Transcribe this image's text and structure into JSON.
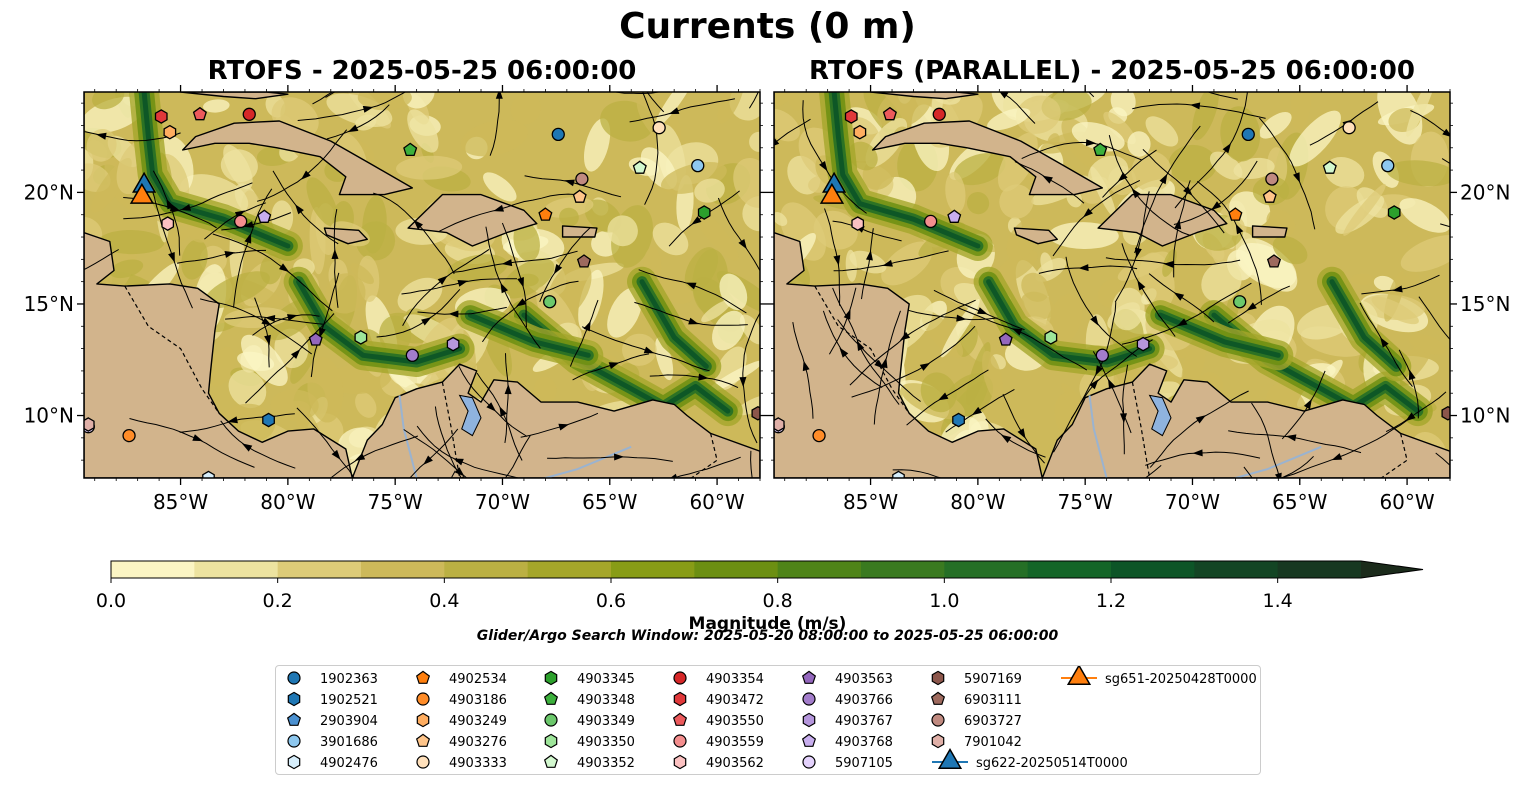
{
  "figure": {
    "title": "Currents (0 m)",
    "colorbar_label": "Magnitude (m/s)",
    "search_window": "Glider/Argo Search Window: 2025-05-20 08:00:00 to 2025-05-25 06:00:00"
  },
  "colors": {
    "land": "#d2b48c",
    "lake": "#8fb3de",
    "river": "#9ab3d0",
    "scale": [
      "#fbf5c4",
      "#ede3a0",
      "#ddcb78",
      "#cdb95a",
      "#bbb043",
      "#a5a62a",
      "#889c16",
      "#6c8f12",
      "#4f8418",
      "#3a7a20",
      "#256f26",
      "#146528",
      "#0d5527",
      "#134524",
      "#173821",
      "#1b2b1b"
    ]
  },
  "chart_data": [
    {
      "type": "map",
      "title": "RTOFS - 2025-05-25 06:00:00",
      "lon_range": [
        -89.5,
        -58
      ],
      "lat_range": [
        7.2,
        24.5
      ],
      "x_ticks": [
        "85°W",
        "80°W",
        "75°W",
        "70°W",
        "65°W",
        "60°W"
      ],
      "y_ticks": [
        "20°N",
        "15°N",
        "10°N"
      ],
      "y_axis_side": "left"
    },
    {
      "type": "map",
      "title": "RTOFS (PARALLEL) - 2025-05-25 06:00:00",
      "lon_range": [
        -89.5,
        -58
      ],
      "lat_range": [
        7.2,
        24.5
      ],
      "x_ticks": [
        "85°W",
        "80°W",
        "75°W",
        "70°W",
        "65°W",
        "60°W"
      ],
      "y_ticks": [
        "20°N",
        "15°N",
        "10°N"
      ],
      "y_axis_side": "right"
    }
  ],
  "colorbar": {
    "min": 0.0,
    "max": 1.5,
    "step": 0.1,
    "extend": "max",
    "ticks": [
      "0.0",
      "0.2",
      "0.4",
      "0.6",
      "0.8",
      "1.0",
      "1.2",
      "1.4"
    ]
  },
  "legend": {
    "items": [
      {
        "label": "1902363",
        "marker": "circle",
        "color": "#1f77b4"
      },
      {
        "label": "1902521",
        "marker": "hexagon",
        "color": "#1f77b4"
      },
      {
        "label": "2903904",
        "marker": "pentagon",
        "color": "#4a90d0"
      },
      {
        "label": "3901686",
        "marker": "circle",
        "color": "#8ec8ef"
      },
      {
        "label": "4902476",
        "marker": "hexagon",
        "color": "#d7eefb"
      },
      {
        "label": "4902534",
        "marker": "pentagon",
        "color": "#ff7f0e"
      },
      {
        "label": "4903186",
        "marker": "circle",
        "color": "#ff8c28"
      },
      {
        "label": "4903249",
        "marker": "hexagon",
        "color": "#ffad60"
      },
      {
        "label": "4903276",
        "marker": "pentagon",
        "color": "#ffc58a"
      },
      {
        "label": "4903333",
        "marker": "circle",
        "color": "#ffe0bb"
      },
      {
        "label": "4903345",
        "marker": "hexagon",
        "color": "#2ca02c"
      },
      {
        "label": "4903348",
        "marker": "pentagon",
        "color": "#3cb03c"
      },
      {
        "label": "4903349",
        "marker": "circle",
        "color": "#6cc86c"
      },
      {
        "label": "4903350",
        "marker": "hexagon",
        "color": "#9ee59a"
      },
      {
        "label": "4903352",
        "marker": "pentagon",
        "color": "#d3f8cf"
      },
      {
        "label": "4903354",
        "marker": "circle",
        "color": "#d62728"
      },
      {
        "label": "4903472",
        "marker": "hexagon",
        "color": "#e0383a"
      },
      {
        "label": "4903550",
        "marker": "pentagon",
        "color": "#ec5a5c"
      },
      {
        "label": "4903559",
        "marker": "circle",
        "color": "#f48e8e"
      },
      {
        "label": "4903562",
        "marker": "hexagon",
        "color": "#fbc1c1"
      },
      {
        "label": "4903563",
        "marker": "pentagon",
        "color": "#9467bd"
      },
      {
        "label": "4903766",
        "marker": "circle",
        "color": "#a37dcb"
      },
      {
        "label": "4903767",
        "marker": "hexagon",
        "color": "#b596dc"
      },
      {
        "label": "4903768",
        "marker": "pentagon",
        "color": "#c8aeee"
      },
      {
        "label": "5907105",
        "marker": "circle",
        "color": "#e4d2fc"
      },
      {
        "label": "5907169",
        "marker": "hexagon",
        "color": "#8c564b"
      },
      {
        "label": "6903111",
        "marker": "pentagon",
        "color": "#9e6a5e"
      },
      {
        "label": "6903727",
        "marker": "circle",
        "color": "#c08a80"
      },
      {
        "label": "7901042",
        "marker": "hexagon",
        "color": "#e0b0a8"
      },
      {
        "label": "sg622-20250514T0000",
        "marker": "triangle",
        "color": "#1f77b4"
      },
      {
        "label": "sg651-20250428T0000",
        "marker": "triangle",
        "color": "#ff7f0e"
      }
    ]
  },
  "floats": [
    {
      "label": "1902363",
      "lon": -67.4,
      "lat": 22.6,
      "marker": "circle",
      "color": "#1f77b4"
    },
    {
      "label": "1902521",
      "lon": -80.9,
      "lat": 9.8,
      "marker": "hexagon",
      "color": "#1f77b4"
    },
    {
      "label": "3901686",
      "lon": -60.9,
      "lat": 21.2,
      "marker": "circle",
      "color": "#8ec8ef"
    },
    {
      "label": "4902476",
      "lon": -83.7,
      "lat": 7.2,
      "marker": "hexagon",
      "color": "#d7eefb"
    },
    {
      "label": "4902534",
      "lon": -68.0,
      "lat": 19.0,
      "marker": "pentagon",
      "color": "#ff7f0e"
    },
    {
      "label": "4903186",
      "lon": -87.4,
      "lat": 9.1,
      "marker": "circle",
      "color": "#ff8c28"
    },
    {
      "label": "4903249",
      "lon": -85.5,
      "lat": 22.7,
      "marker": "hexagon",
      "color": "#ffad60"
    },
    {
      "label": "4903276",
      "lon": -66.4,
      "lat": 19.8,
      "marker": "pentagon",
      "color": "#ffc58a"
    },
    {
      "label": "4903333",
      "lon": -62.7,
      "lat": 22.9,
      "marker": "circle",
      "color": "#ffe0bb"
    },
    {
      "label": "4903345",
      "lon": -60.6,
      "lat": 19.1,
      "marker": "hexagon",
      "color": "#2ca02c"
    },
    {
      "label": "4903348",
      "lon": -74.3,
      "lat": 21.9,
      "marker": "pentagon",
      "color": "#3cb03c"
    },
    {
      "label": "4903349",
      "lon": -67.8,
      "lat": 15.1,
      "marker": "circle",
      "color": "#6cc86c"
    },
    {
      "label": "4903350",
      "lon": -76.6,
      "lat": 13.5,
      "marker": "hexagon",
      "color": "#9ee59a"
    },
    {
      "label": "4903352",
      "lon": -63.6,
      "lat": 21.1,
      "marker": "pentagon",
      "color": "#d3f8cf"
    },
    {
      "label": "4903354",
      "lon": -81.8,
      "lat": 23.5,
      "marker": "circle",
      "color": "#d62728"
    },
    {
      "label": "4903472",
      "lon": -85.9,
      "lat": 23.4,
      "marker": "hexagon",
      "color": "#e0383a"
    },
    {
      "label": "4903550",
      "lon": -84.1,
      "lat": 23.5,
      "marker": "pentagon",
      "color": "#ec5a5c"
    },
    {
      "label": "4903559",
      "lon": -82.2,
      "lat": 18.7,
      "marker": "circle",
      "color": "#f48e8e"
    },
    {
      "label": "4903562",
      "lon": -85.6,
      "lat": 18.6,
      "marker": "hexagon",
      "color": "#fbc1c1"
    },
    {
      "label": "4903563",
      "lon": -78.7,
      "lat": 13.4,
      "marker": "pentagon",
      "color": "#9467bd"
    },
    {
      "label": "4903766",
      "lon": -74.2,
      "lat": 12.7,
      "marker": "circle",
      "color": "#a37dcb"
    },
    {
      "label": "4903767",
      "lon": -72.3,
      "lat": 13.2,
      "marker": "hexagon",
      "color": "#b596dc"
    },
    {
      "label": "4903768",
      "lon": -81.1,
      "lat": 18.9,
      "marker": "pentagon",
      "color": "#c8aeee"
    },
    {
      "label": "5907105",
      "lon": -89.3,
      "lat": 9.5,
      "marker": "circle",
      "color": "#e4d2fc"
    },
    {
      "label": "5907169",
      "lon": -58.1,
      "lat": 10.1,
      "marker": "hexagon",
      "color": "#8c564b"
    },
    {
      "label": "6903111",
      "lon": -66.2,
      "lat": 16.9,
      "marker": "pentagon",
      "color": "#9e6a5e"
    },
    {
      "label": "6903727",
      "lon": -66.3,
      "lat": 20.6,
      "marker": "circle",
      "color": "#c08a80"
    },
    {
      "label": "7901042",
      "lon": -89.3,
      "lat": 9.6,
      "marker": "hexagon",
      "color": "#e0b0a8"
    }
  ],
  "gliders": [
    {
      "label": "sg622-20250514T0000",
      "lon": -86.7,
      "lat": 20.3,
      "color": "#1f77b4"
    },
    {
      "label": "sg651-20250428T0000",
      "lon": -86.8,
      "lat": 19.8,
      "color": "#ff7f0e"
    }
  ]
}
